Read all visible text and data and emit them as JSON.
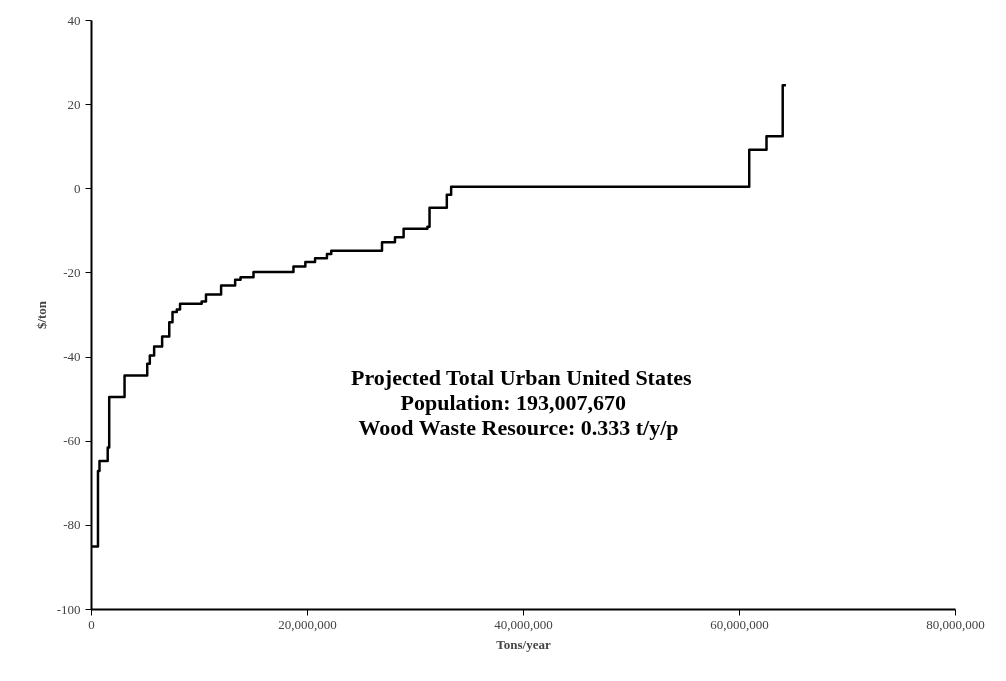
{
  "chart_data": {
    "type": "step",
    "xlabel": "Tons/year",
    "ylabel": "$/ton",
    "x": [
      0,
      600000,
      740000,
      1500000,
      1640000,
      3060000,
      5160000,
      5400000,
      5800000,
      6540000,
      7200000,
      7500000,
      7900000,
      8200000,
      10200000,
      10600000,
      12000000,
      13300000,
      13800000,
      15000000,
      18700000,
      19800000,
      20700000,
      21800000,
      22200000,
      26900000,
      28100000,
      28900000,
      31100000,
      31300000,
      32900000,
      33300000,
      60900000,
      62500000,
      64000000,
      64300000
    ],
    "values": [
      -85,
      -67.1,
      -64.7,
      -61.5,
      -49.5,
      -44.4,
      -41.6,
      -39.6,
      -37.5,
      -35.1,
      -31.7,
      -29.3,
      -28.7,
      -27.3,
      -26.8,
      -25.1,
      -23.0,
      -21.6,
      -21.0,
      -19.8,
      -18.5,
      -17.4,
      -16.5,
      -15.5,
      -14.7,
      -12.7,
      -11.5,
      -9.5,
      -9.0,
      -4.5,
      -1.4,
      0.5,
      9.3,
      12.5,
      24.6,
      24.6
    ],
    "color": "#000000",
    "line_style": "solid",
    "marker": "none",
    "grid": false,
    "xlim": [
      0,
      80000000
    ],
    "ylim": [
      -100,
      40
    ],
    "xticks": [
      0,
      {
        "value": 20000000,
        "label": "20,000,000"
      },
      {
        "value": 40000000,
        "label": "40,000,000"
      },
      {
        "value": 60000000,
        "label": "60,000,000"
      },
      {
        "value": 80000000,
        "label": "80,000,000"
      }
    ],
    "yticks": [
      -100,
      -80,
      -60,
      -40,
      -20,
      0,
      20,
      40
    ],
    "annotations": [
      "Projected Total Urban United States",
      "Population:    193,007,670",
      "Wood Waste Resource:  0.333 t/y/p"
    ]
  }
}
